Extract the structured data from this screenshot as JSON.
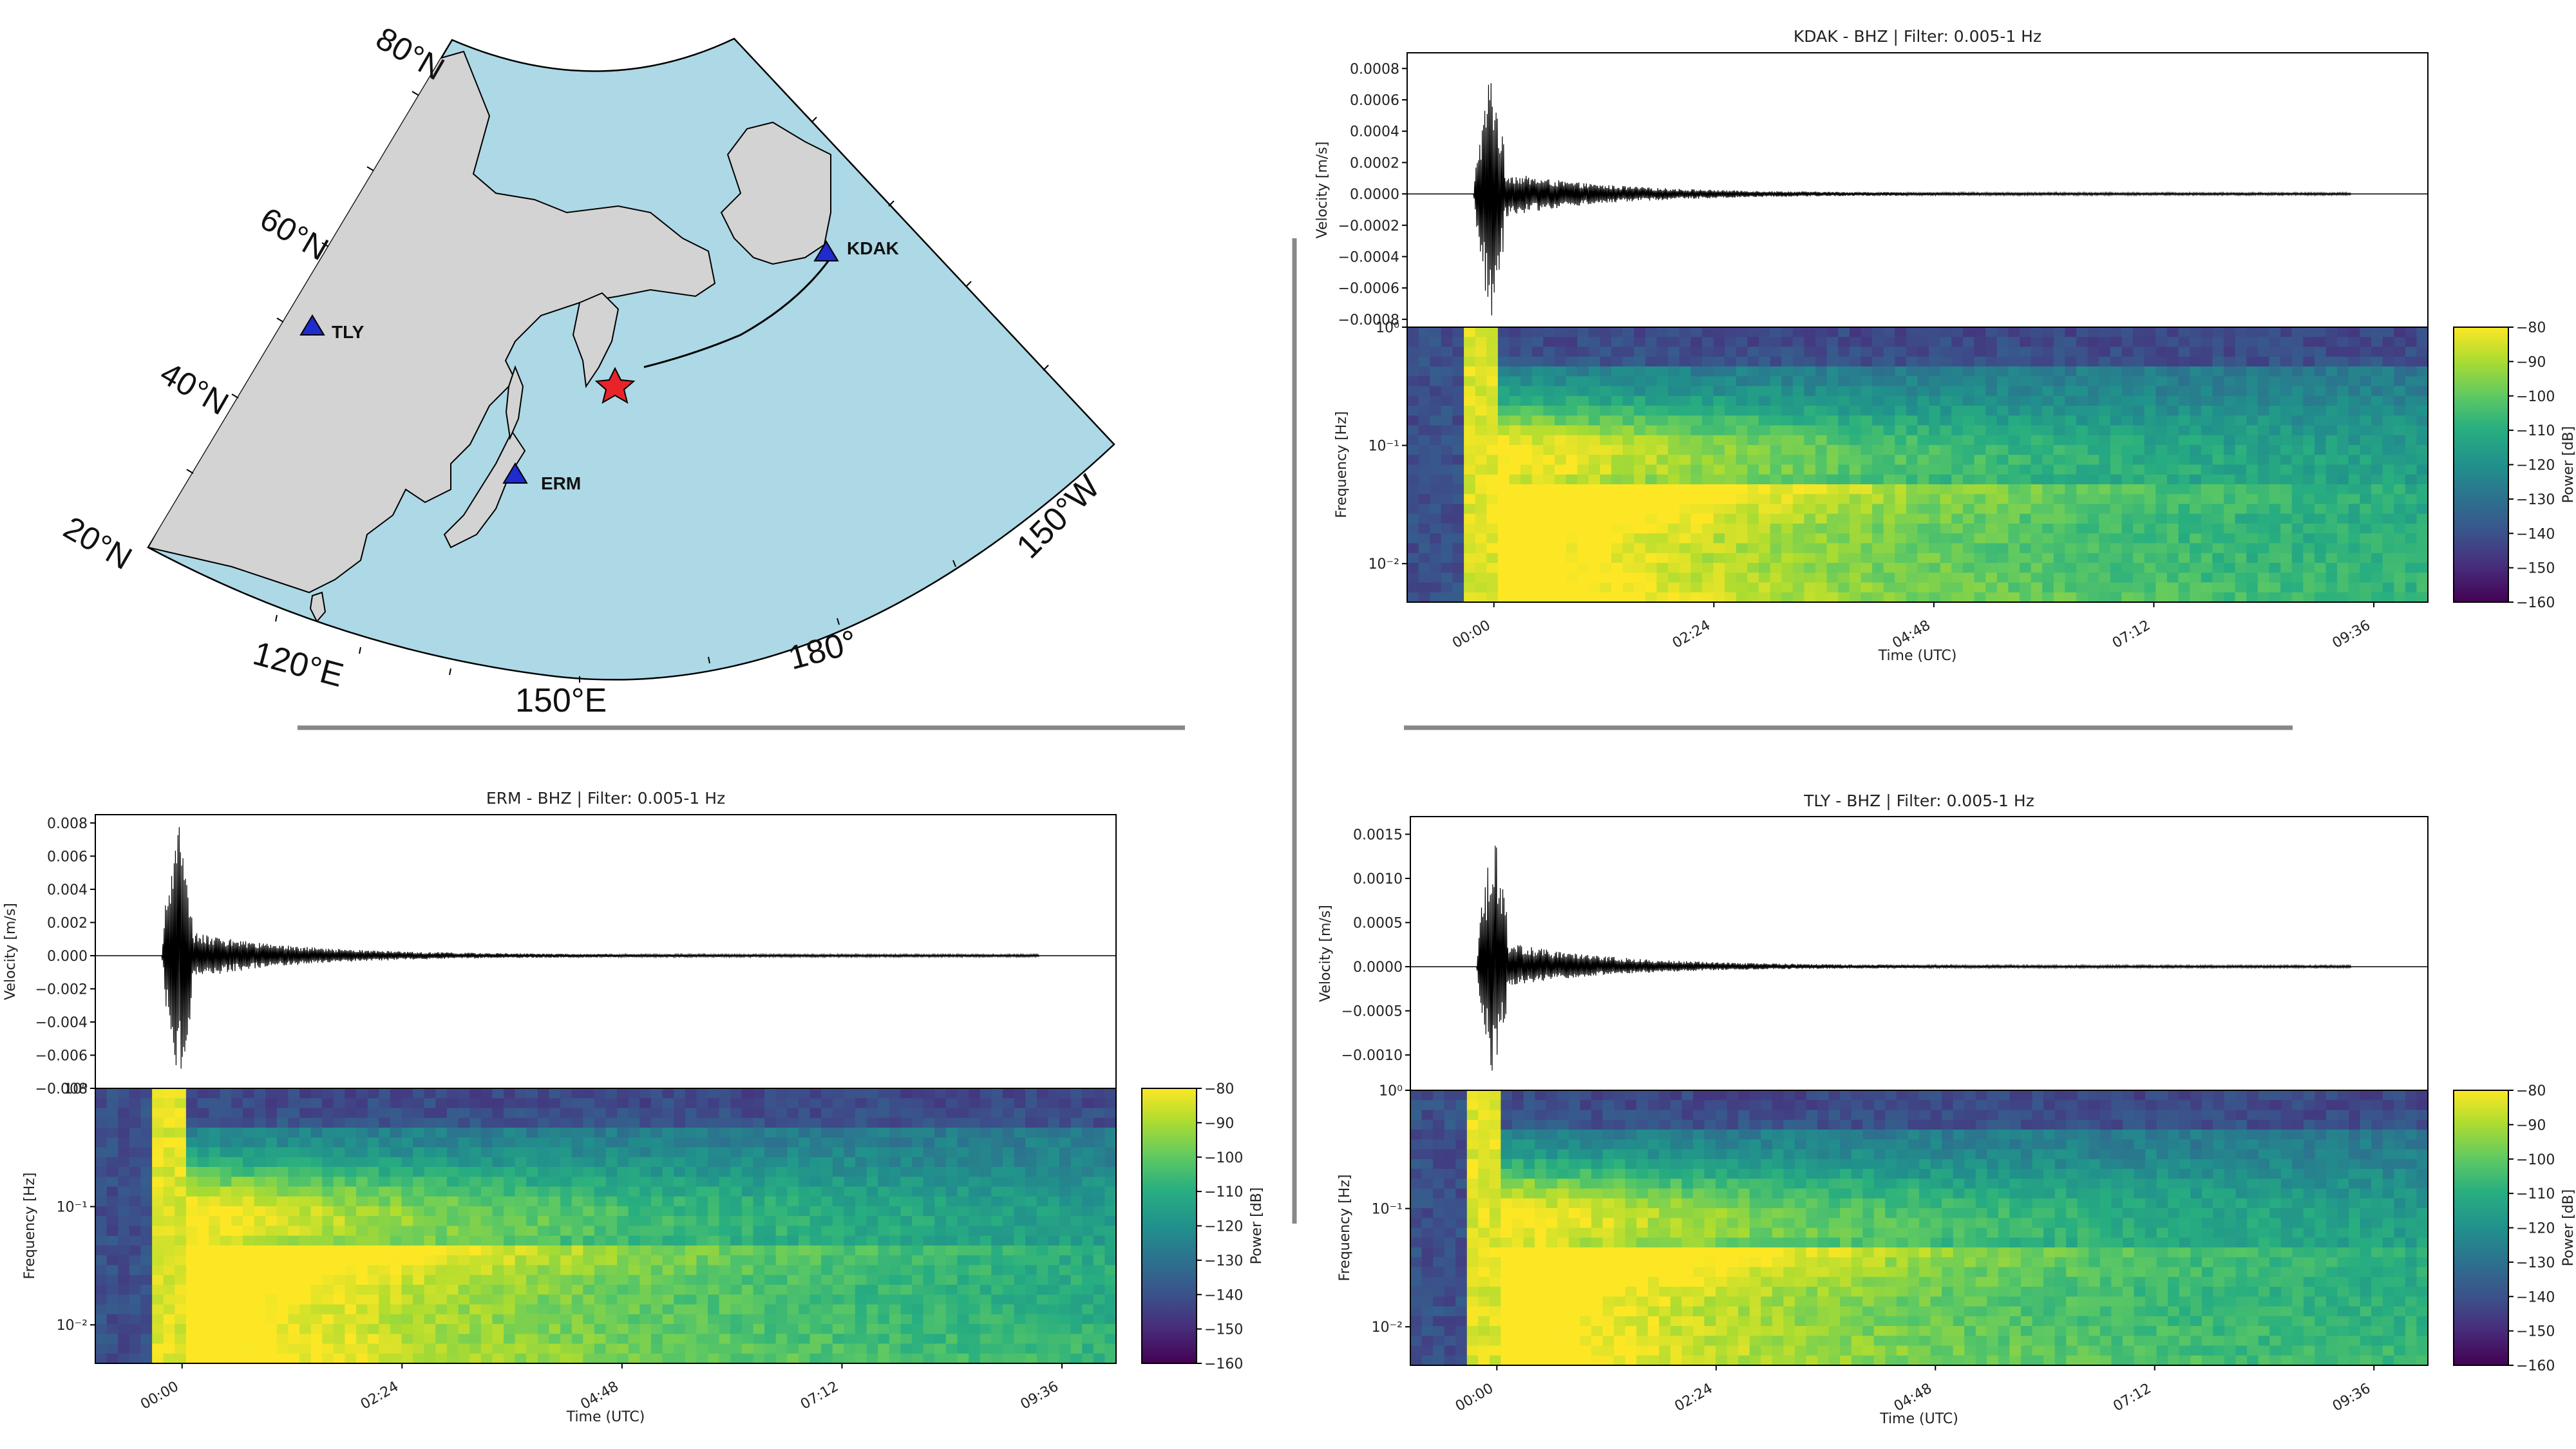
{
  "map": {
    "lat_labels": [
      "80°N",
      "60°N",
      "40°N",
      "20°N"
    ],
    "lon_labels": [
      "120°E",
      "150°E",
      "180°",
      "150°W"
    ],
    "stations": [
      {
        "code": "KDAK",
        "lat": 57.8,
        "lon": -152.6
      },
      {
        "code": "TLY",
        "lat": 51.7,
        "lon": 103.6
      },
      {
        "code": "ERM",
        "lat": 42.0,
        "lon": 143.2
      }
    ],
    "epicenter": {
      "lat": 52.5,
      "lon": 160.3
    },
    "colors": {
      "ocean": "#add8e6",
      "land": "#d3d3d3",
      "station": "#1f2bcc",
      "epicenter": "#e8242a"
    }
  },
  "chart_data": [
    {
      "type": "line+heatmap",
      "title": "KDAK - BHZ | Filter: 0.005-1 Hz",
      "ylabel": "Velocity [m/s]",
      "yticks": [
        "0.0008",
        "0.0006",
        "0.0004",
        "0.0002",
        "0.0000",
        "−0.0002",
        "−0.0004",
        "−0.0006",
        "−0.0008"
      ],
      "ylim": [
        -0.00085,
        0.0009
      ],
      "peak_velocity": [
        0.00078,
        -0.00082
      ],
      "spec_ylabel": "Frequency [Hz]",
      "spec_yticks": [
        "10⁰",
        "10⁻¹",
        "10⁻²"
      ],
      "xlabel": "Time (UTC)",
      "xticks": [
        "00:00",
        "02:24",
        "04:48",
        "07:12",
        "09:36"
      ],
      "colorbar": {
        "label": "Power [dB]",
        "ticks": [
          "−80",
          "−90",
          "−100",
          "−110",
          "−120",
          "−130",
          "−140",
          "−150",
          "−160"
        ],
        "range": [
          -160,
          -80
        ]
      }
    },
    {
      "type": "line+heatmap",
      "title": "ERM - BHZ | Filter: 0.005-1 Hz",
      "ylabel": "Velocity [m/s]",
      "yticks": [
        "0.008",
        "0.006",
        "0.004",
        "0.002",
        "0.000",
        "−0.002",
        "−0.004",
        "−0.006",
        "−0.008"
      ],
      "ylim": [
        -0.008,
        0.0085
      ],
      "peak_velocity": [
        0.0078,
        -0.0078
      ],
      "spec_ylabel": "Frequency [Hz]",
      "spec_yticks": [
        "10⁰",
        "10⁻¹",
        "10⁻²"
      ],
      "xlabel": "Time (UTC)",
      "xticks": [
        "00:00",
        "02:24",
        "04:48",
        "07:12",
        "09:36"
      ],
      "colorbar": {
        "label": "Power [dB]",
        "ticks": [
          "−80",
          "−90",
          "−100",
          "−110",
          "−120",
          "−130",
          "−140",
          "−150",
          "−160"
        ],
        "range": [
          -160,
          -80
        ]
      }
    },
    {
      "type": "line+heatmap",
      "title": "TLY - BHZ | Filter: 0.005-1 Hz",
      "ylabel": "Velocity [m/s]",
      "yticks": [
        "0.0015",
        "0.0010",
        "0.0005",
        "0.0000",
        "−0.0005",
        "−0.0010"
      ],
      "ylim": [
        -0.0014,
        0.0017
      ],
      "peak_velocity": [
        0.00155,
        -0.00125
      ],
      "spec_ylabel": "Frequency [Hz]",
      "spec_yticks": [
        "10⁰",
        "10⁻¹",
        "10⁻²"
      ],
      "xlabel": "Time (UTC)",
      "xticks": [
        "00:00",
        "02:24",
        "04:48",
        "07:12",
        "09:36"
      ],
      "colorbar": {
        "label": "Power [dB]",
        "ticks": [
          "−80",
          "−90",
          "−100",
          "−110",
          "−120",
          "−130",
          "−140",
          "−150",
          "−160"
        ],
        "range": [
          -160,
          -80
        ]
      }
    }
  ]
}
